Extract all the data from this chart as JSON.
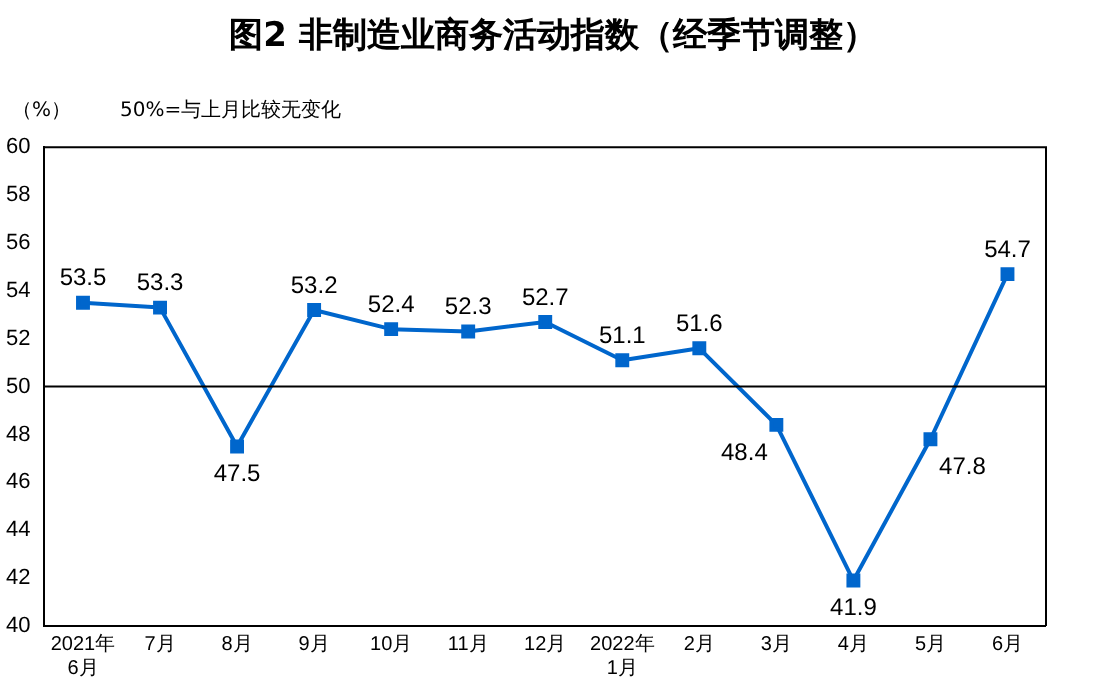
{
  "chart_data": {
    "type": "line",
    "title": "图2  非制造业商务活动指数（经季节调整）",
    "ylabel": "（%）",
    "annotations": [
      "50%=与上月比较无变化"
    ],
    "categories": [
      "2021年6月",
      "7月",
      "8月",
      "9月",
      "10月",
      "11月",
      "12月",
      "2022年1月",
      "2月",
      "3月",
      "4月",
      "5月",
      "6月"
    ],
    "series": [
      {
        "color": "#0066cc",
        "values": [
          53.5,
          53.3,
          47.5,
          53.2,
          52.4,
          52.3,
          52.7,
          51.1,
          51.6,
          48.4,
          41.9,
          47.8,
          54.7
        ]
      }
    ],
    "ylim": [
      40,
      60
    ],
    "yticks": [
      40,
      42,
      44,
      46,
      48,
      50,
      52,
      54,
      56,
      58,
      60
    ],
    "ref_lines": [
      {
        "axis": "y",
        "value": 50,
        "color": "#000000"
      }
    ],
    "data_labels": true,
    "marker": "square",
    "line_style": "solid",
    "grid": false,
    "legend": false
  }
}
